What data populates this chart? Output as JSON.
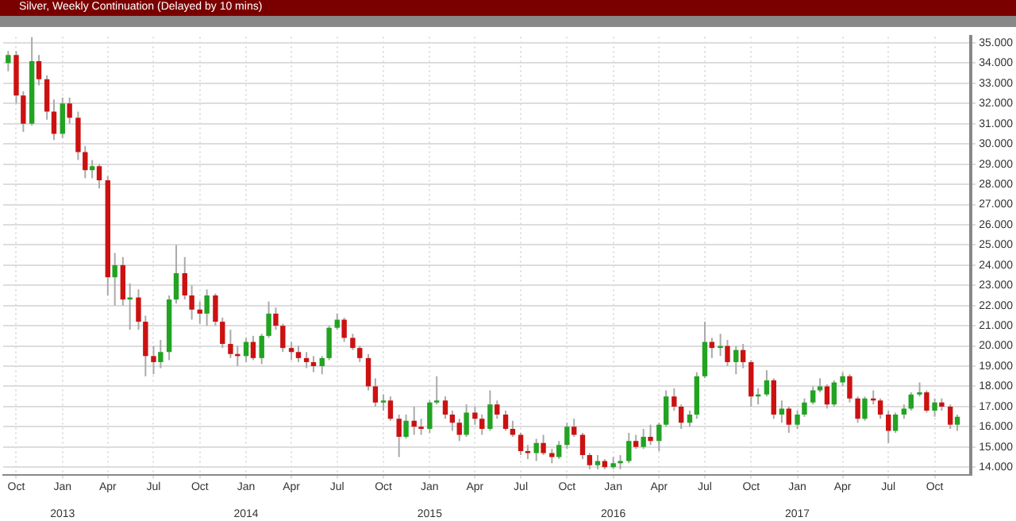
{
  "chart_data": {
    "type": "candlestick",
    "title": "Silver, Weekly Continuation (Delayed by 10 mins)",
    "x": [
      "2012-09-15",
      "2012-10-01",
      "2012-10-15",
      "2012-11-01",
      "2012-11-15",
      "2012-12-01",
      "2012-12-15",
      "2013-01-01",
      "2013-01-15",
      "2013-02-01",
      "2013-02-15",
      "2013-03-01",
      "2013-03-15",
      "2013-04-01",
      "2013-04-15",
      "2013-05-01",
      "2013-05-15",
      "2013-06-01",
      "2013-06-15",
      "2013-07-01",
      "2013-07-15",
      "2013-08-01",
      "2013-08-15",
      "2013-09-01",
      "2013-09-15",
      "2013-10-01",
      "2013-10-15",
      "2013-11-01",
      "2013-11-15",
      "2013-12-01",
      "2013-12-15",
      "2014-01-01",
      "2014-01-15",
      "2014-02-01",
      "2014-02-15",
      "2014-03-01",
      "2014-03-15",
      "2014-04-01",
      "2014-04-15",
      "2014-05-01",
      "2014-05-15",
      "2014-06-01",
      "2014-06-15",
      "2014-07-01",
      "2014-07-15",
      "2014-08-01",
      "2014-08-15",
      "2014-09-01",
      "2014-09-15",
      "2014-10-01",
      "2014-10-15",
      "2014-11-01",
      "2014-11-15",
      "2014-12-01",
      "2014-12-15",
      "2015-01-01",
      "2015-01-15",
      "2015-02-01",
      "2015-02-15",
      "2015-03-01",
      "2015-03-15",
      "2015-04-01",
      "2015-04-15",
      "2015-05-01",
      "2015-05-15",
      "2015-06-01",
      "2015-06-15",
      "2015-07-01",
      "2015-07-15",
      "2015-08-01",
      "2015-08-15",
      "2015-09-01",
      "2015-09-15",
      "2015-10-01",
      "2015-10-15",
      "2015-11-01",
      "2015-11-15",
      "2015-12-01",
      "2015-12-15",
      "2016-01-01",
      "2016-01-15",
      "2016-02-01",
      "2016-02-15",
      "2016-03-01",
      "2016-03-15",
      "2016-04-01",
      "2016-04-15",
      "2016-05-01",
      "2016-05-15",
      "2016-06-01",
      "2016-06-15",
      "2016-07-01",
      "2016-07-15",
      "2016-08-01",
      "2016-08-15",
      "2016-09-01",
      "2016-09-15",
      "2016-10-01",
      "2016-10-15",
      "2016-11-01",
      "2016-11-15",
      "2016-12-01",
      "2016-12-15",
      "2017-01-01",
      "2017-01-15",
      "2017-02-01",
      "2017-02-15",
      "2017-03-01",
      "2017-03-15",
      "2017-04-01",
      "2017-04-15",
      "2017-05-01",
      "2017-05-15",
      "2017-06-01",
      "2017-06-15",
      "2017-07-01",
      "2017-07-15",
      "2017-08-01",
      "2017-08-15",
      "2017-09-01",
      "2017-09-15",
      "2017-10-01",
      "2017-10-15",
      "2017-11-01",
      "2017-11-15"
    ],
    "ohlc": [
      [
        34.0,
        34.6,
        33.6,
        34.4
      ],
      [
        34.4,
        34.6,
        32.0,
        32.4
      ],
      [
        32.4,
        32.6,
        30.6,
        31.0
      ],
      [
        31.0,
        35.3,
        30.9,
        34.1
      ],
      [
        34.1,
        34.4,
        32.9,
        33.2
      ],
      [
        33.2,
        33.4,
        31.2,
        31.6
      ],
      [
        31.6,
        32.2,
        30.2,
        30.5
      ],
      [
        30.5,
        32.3,
        30.3,
        32.0
      ],
      [
        32.0,
        32.3,
        31.0,
        31.3
      ],
      [
        31.3,
        31.6,
        29.2,
        29.6
      ],
      [
        29.6,
        29.9,
        28.3,
        28.7
      ],
      [
        28.7,
        29.2,
        28.3,
        28.9
      ],
      [
        28.9,
        29.0,
        27.8,
        28.2
      ],
      [
        28.2,
        28.4,
        22.5,
        23.4
      ],
      [
        23.4,
        24.6,
        22.0,
        24.0
      ],
      [
        24.0,
        24.4,
        22.0,
        22.3
      ],
      [
        22.3,
        23.1,
        20.8,
        22.4
      ],
      [
        22.4,
        22.8,
        20.8,
        21.2
      ],
      [
        21.2,
        21.5,
        18.5,
        19.5
      ],
      [
        19.5,
        20.0,
        18.6,
        19.2
      ],
      [
        19.2,
        20.3,
        18.9,
        19.7
      ],
      [
        19.7,
        22.5,
        19.3,
        22.3
      ],
      [
        22.3,
        25.0,
        22.1,
        23.6
      ],
      [
        23.6,
        24.4,
        22.3,
        22.5
      ],
      [
        22.5,
        23.0,
        21.3,
        21.8
      ],
      [
        21.8,
        22.2,
        21.1,
        21.6
      ],
      [
        21.6,
        22.8,
        21.0,
        22.5
      ],
      [
        22.5,
        22.6,
        21.0,
        21.2
      ],
      [
        21.2,
        21.4,
        19.9,
        20.1
      ],
      [
        20.1,
        20.8,
        19.4,
        19.6
      ],
      [
        19.6,
        20.0,
        19.0,
        19.5
      ],
      [
        19.5,
        20.4,
        19.2,
        20.2
      ],
      [
        20.2,
        20.5,
        19.3,
        19.4
      ],
      [
        19.4,
        20.6,
        19.1,
        20.5
      ],
      [
        20.5,
        22.2,
        20.4,
        21.6
      ],
      [
        21.6,
        21.9,
        20.8,
        21.0
      ],
      [
        21.0,
        21.1,
        19.7,
        19.9
      ],
      [
        19.9,
        20.2,
        19.3,
        19.7
      ],
      [
        19.7,
        20.0,
        19.2,
        19.4
      ],
      [
        19.4,
        19.7,
        18.9,
        19.2
      ],
      [
        19.2,
        19.5,
        18.7,
        19.0
      ],
      [
        19.0,
        19.5,
        18.6,
        19.4
      ],
      [
        19.4,
        21.0,
        19.3,
        20.9
      ],
      [
        20.9,
        21.6,
        20.8,
        21.3
      ],
      [
        21.3,
        21.4,
        20.2,
        20.4
      ],
      [
        20.4,
        20.6,
        19.8,
        19.9
      ],
      [
        19.9,
        20.0,
        19.2,
        19.4
      ],
      [
        19.4,
        19.6,
        17.8,
        18.0
      ],
      [
        18.0,
        18.4,
        17.0,
        17.2
      ],
      [
        17.2,
        17.6,
        16.8,
        17.3
      ],
      [
        17.3,
        17.5,
        16.3,
        16.4
      ],
      [
        16.4,
        16.6,
        14.5,
        15.5
      ],
      [
        15.5,
        16.6,
        15.4,
        16.3
      ],
      [
        16.3,
        17.0,
        15.6,
        16.0
      ],
      [
        16.0,
        16.4,
        15.6,
        15.9
      ],
      [
        15.9,
        17.3,
        15.7,
        17.2
      ],
      [
        17.2,
        18.5,
        17.1,
        17.3
      ],
      [
        17.3,
        17.5,
        16.4,
        16.6
      ],
      [
        16.6,
        16.8,
        15.8,
        16.2
      ],
      [
        16.2,
        16.4,
        15.3,
        15.6
      ],
      [
        15.6,
        17.1,
        15.5,
        16.7
      ],
      [
        16.7,
        17.0,
        16.1,
        16.4
      ],
      [
        16.4,
        16.6,
        15.6,
        15.9
      ],
      [
        15.9,
        17.8,
        15.8,
        17.1
      ],
      [
        17.1,
        17.3,
        16.4,
        16.6
      ],
      [
        16.6,
        16.8,
        15.8,
        15.9
      ],
      [
        15.9,
        16.3,
        15.5,
        15.6
      ],
      [
        15.6,
        15.7,
        14.6,
        14.8
      ],
      [
        14.8,
        15.1,
        14.4,
        14.7
      ],
      [
        14.7,
        15.4,
        14.3,
        15.2
      ],
      [
        15.2,
        15.6,
        14.6,
        14.7
      ],
      [
        14.7,
        14.9,
        14.2,
        14.5
      ],
      [
        14.5,
        15.3,
        14.4,
        15.1
      ],
      [
        15.1,
        16.2,
        14.9,
        16.0
      ],
      [
        16.0,
        16.4,
        15.5,
        15.6
      ],
      [
        15.6,
        15.7,
        14.4,
        14.6
      ],
      [
        14.6,
        14.7,
        13.9,
        14.1
      ],
      [
        14.1,
        14.6,
        13.9,
        14.3
      ],
      [
        14.3,
        14.4,
        13.9,
        14.0
      ],
      [
        14.0,
        14.5,
        13.9,
        14.2
      ],
      [
        14.2,
        14.6,
        13.9,
        14.3
      ],
      [
        14.3,
        15.7,
        14.2,
        15.3
      ],
      [
        15.3,
        15.6,
        14.9,
        15.0
      ],
      [
        15.0,
        15.9,
        14.9,
        15.5
      ],
      [
        15.5,
        16.1,
        15.1,
        15.3
      ],
      [
        15.3,
        16.2,
        14.8,
        16.1
      ],
      [
        16.1,
        17.8,
        16.0,
        17.5
      ],
      [
        17.5,
        17.9,
        16.8,
        17.0
      ],
      [
        17.0,
        17.1,
        15.9,
        16.2
      ],
      [
        16.2,
        16.8,
        16.0,
        16.6
      ],
      [
        16.6,
        18.7,
        16.4,
        18.5
      ],
      [
        18.5,
        21.2,
        18.4,
        20.2
      ],
      [
        20.2,
        20.4,
        19.4,
        19.9
      ],
      [
        19.9,
        20.6,
        19.5,
        20.0
      ],
      [
        20.0,
        20.3,
        19.0,
        19.2
      ],
      [
        19.2,
        20.0,
        18.6,
        19.8
      ],
      [
        19.8,
        20.1,
        18.9,
        19.2
      ],
      [
        19.2,
        19.3,
        17.0,
        17.5
      ],
      [
        17.5,
        17.9,
        17.1,
        17.6
      ],
      [
        17.6,
        18.8,
        17.5,
        18.3
      ],
      [
        18.3,
        18.4,
        16.4,
        16.6
      ],
      [
        16.6,
        17.3,
        16.2,
        16.9
      ],
      [
        16.9,
        17.0,
        15.7,
        16.1
      ],
      [
        16.1,
        16.8,
        15.9,
        16.6
      ],
      [
        16.6,
        17.4,
        16.5,
        17.2
      ],
      [
        17.2,
        18.0,
        17.1,
        17.8
      ],
      [
        17.8,
        18.4,
        17.7,
        18.0
      ],
      [
        18.0,
        18.1,
        16.9,
        17.1
      ],
      [
        17.1,
        18.3,
        17.0,
        18.2
      ],
      [
        18.2,
        18.7,
        18.0,
        18.5
      ],
      [
        18.5,
        18.6,
        17.2,
        17.4
      ],
      [
        17.4,
        17.5,
        16.2,
        16.4
      ],
      [
        16.4,
        17.5,
        16.3,
        17.4
      ],
      [
        17.4,
        17.8,
        17.1,
        17.3
      ],
      [
        17.3,
        17.4,
        16.4,
        16.6
      ],
      [
        16.6,
        16.8,
        15.2,
        15.8
      ],
      [
        15.8,
        16.7,
        15.7,
        16.6
      ],
      [
        16.6,
        17.1,
        16.4,
        16.9
      ],
      [
        16.9,
        17.7,
        16.8,
        17.6
      ],
      [
        17.6,
        18.2,
        17.5,
        17.7
      ],
      [
        17.7,
        17.8,
        16.7,
        16.8
      ],
      [
        16.8,
        17.4,
        16.5,
        17.2
      ],
      [
        17.2,
        17.4,
        16.8,
        17.0
      ],
      [
        17.0,
        17.1,
        15.9,
        16.1
      ],
      [
        16.1,
        16.6,
        15.8,
        16.5
      ]
    ],
    "xlim": [
      "2012-09-05",
      "2017-12-12"
    ],
    "xticks": [
      {
        "value": "2012-10-01",
        "label": "Oct"
      },
      {
        "value": "2013-01-01",
        "label": "Jan"
      },
      {
        "value": "2013-04-01",
        "label": "Apr"
      },
      {
        "value": "2013-07-01",
        "label": "Jul"
      },
      {
        "value": "2013-10-01",
        "label": "Oct"
      },
      {
        "value": "2014-01-01",
        "label": "Jan"
      },
      {
        "value": "2014-04-01",
        "label": "Apr"
      },
      {
        "value": "2014-07-01",
        "label": "Jul"
      },
      {
        "value": "2014-10-01",
        "label": "Oct"
      },
      {
        "value": "2015-01-01",
        "label": "Jan"
      },
      {
        "value": "2015-04-01",
        "label": "Apr"
      },
      {
        "value": "2015-07-01",
        "label": "Jul"
      },
      {
        "value": "2015-10-01",
        "label": "Oct"
      },
      {
        "value": "2016-01-01",
        "label": "Jan"
      },
      {
        "value": "2016-04-01",
        "label": "Apr"
      },
      {
        "value": "2016-07-01",
        "label": "Jul"
      },
      {
        "value": "2016-10-01",
        "label": "Oct"
      },
      {
        "value": "2017-01-01",
        "label": "Jan"
      },
      {
        "value": "2017-04-01",
        "label": "Apr"
      },
      {
        "value": "2017-07-01",
        "label": "Jul"
      },
      {
        "value": "2017-10-01",
        "label": "Oct"
      }
    ],
    "x2lim": [
      "2012-09-05",
      "2017-12-12"
    ],
    "x2ticks": [
      {
        "value": "2013-01-01",
        "label": "2013"
      },
      {
        "value": "2014-01-01",
        "label": "2014"
      },
      {
        "value": "2015-01-01",
        "label": "2015"
      },
      {
        "value": "2016-01-01",
        "label": "2016"
      },
      {
        "value": "2017-01-01",
        "label": "2017"
      }
    ],
    "ylim": [
      13.6,
      35.3
    ],
    "yticks": [
      {
        "value": 14,
        "label": "14.000"
      },
      {
        "value": 15,
        "label": "15.000"
      },
      {
        "value": 16,
        "label": "16.000"
      },
      {
        "value": 17,
        "label": "17.000"
      },
      {
        "value": 18,
        "label": "18.000"
      },
      {
        "value": 19,
        "label": "19.000"
      },
      {
        "value": 20,
        "label": "20.000"
      },
      {
        "value": 21,
        "label": "21.000"
      },
      {
        "value": 22,
        "label": "22.000"
      },
      {
        "value": 23,
        "label": "23.000"
      },
      {
        "value": 24,
        "label": "24.000"
      },
      {
        "value": 25,
        "label": "25.000"
      },
      {
        "value": 26,
        "label": "26.000"
      },
      {
        "value": 27,
        "label": "27.000"
      },
      {
        "value": 28,
        "label": "28.000"
      },
      {
        "value": 29,
        "label": "29.000"
      },
      {
        "value": 30,
        "label": "30.000"
      },
      {
        "value": 31,
        "label": "31.000"
      },
      {
        "value": 32,
        "label": "32.000"
      },
      {
        "value": 33,
        "label": "33.000"
      },
      {
        "value": 34,
        "label": "34.000"
      },
      {
        "value": 35,
        "label": "35.000"
      }
    ],
    "colors": [
      "#22a322",
      "#cc1111",
      "#cc1111",
      "#22a322",
      "#cc1111",
      "#cc1111",
      "#cc1111",
      "#22a322",
      "#cc1111",
      "#cc1111",
      "#cc1111",
      "#22a322",
      "#cc1111",
      "#cc1111",
      "#22a322",
      "#cc1111",
      "#22a322",
      "#cc1111",
      "#cc1111",
      "#cc1111",
      "#22a322",
      "#22a322",
      "#22a322",
      "#cc1111",
      "#cc1111",
      "#cc1111",
      "#22a322",
      "#cc1111",
      "#cc1111",
      "#cc1111",
      "#cc1111",
      "#22a322",
      "#cc1111",
      "#22a322",
      "#22a322",
      "#cc1111",
      "#cc1111",
      "#cc1111",
      "#cc1111",
      "#cc1111",
      "#cc1111",
      "#22a322",
      "#22a322",
      "#22a322",
      "#cc1111",
      "#cc1111",
      "#cc1111",
      "#cc1111",
      "#cc1111",
      "#22a322",
      "#cc1111",
      "#cc1111",
      "#22a322",
      "#cc1111",
      "#cc1111",
      "#22a322",
      "#22a322",
      "#cc1111",
      "#cc1111",
      "#cc1111",
      "#22a322",
      "#cc1111",
      "#cc1111",
      "#22a322",
      "#cc1111",
      "#cc1111",
      "#cc1111",
      "#cc1111",
      "#cc1111",
      "#22a322",
      "#cc1111",
      "#cc1111",
      "#22a322",
      "#22a322",
      "#cc1111",
      "#cc1111",
      "#cc1111",
      "#22a322",
      "#cc1111",
      "#22a322",
      "#22a322",
      "#22a322",
      "#cc1111",
      "#22a322",
      "#cc1111",
      "#22a322",
      "#22a322",
      "#cc1111",
      "#cc1111",
      "#22a322",
      "#22a322",
      "#22a322",
      "#cc1111",
      "#22a322",
      "#cc1111",
      "#22a322",
      "#cc1111",
      "#cc1111",
      "#22a322",
      "#22a322",
      "#cc1111",
      "#22a322",
      "#cc1111",
      "#22a322",
      "#22a322",
      "#22a322",
      "#22a322",
      "#cc1111",
      "#22a322",
      "#22a322",
      "#cc1111",
      "#cc1111",
      "#22a322",
      "#cc1111",
      "#cc1111",
      "#cc1111",
      "#22a322",
      "#22a322",
      "#22a322",
      "#22a322",
      "#cc1111",
      "#22a322",
      "#cc1111",
      "#cc1111",
      "#22a322"
    ],
    "grid": true
  }
}
